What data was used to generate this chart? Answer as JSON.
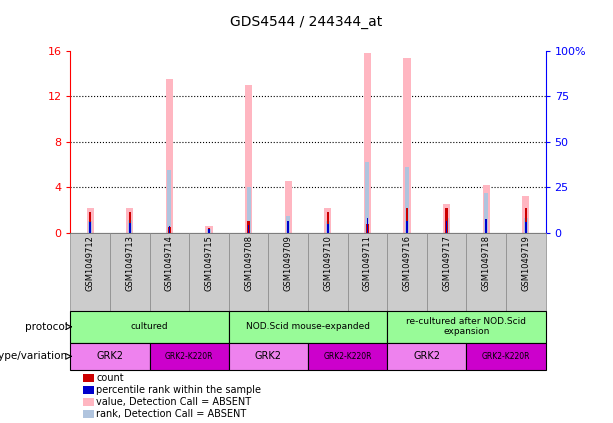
{
  "title": "GDS4544 / 244344_at",
  "samples": [
    "GSM1049712",
    "GSM1049713",
    "GSM1049714",
    "GSM1049715",
    "GSM1049708",
    "GSM1049709",
    "GSM1049710",
    "GSM1049711",
    "GSM1049716",
    "GSM1049717",
    "GSM1049718",
    "GSM1049719"
  ],
  "value_absent": [
    2.2,
    2.2,
    13.5,
    0.6,
    13.0,
    4.5,
    2.2,
    15.8,
    15.4,
    2.5,
    4.2,
    3.2
  ],
  "rank_absent": [
    1.0,
    1.1,
    5.5,
    0.35,
    4.0,
    1.5,
    1.0,
    6.2,
    5.8,
    1.3,
    3.5,
    1.3
  ],
  "count_val": [
    1.8,
    1.8,
    0.5,
    0.45,
    1.0,
    1.0,
    1.8,
    0.8,
    2.2,
    2.2,
    1.2,
    2.2
  ],
  "rank_val": [
    0.9,
    0.85,
    0.55,
    0.35,
    0.65,
    1.0,
    0.8,
    1.3,
    1.05,
    1.0,
    1.2,
    0.9
  ],
  "ylim": [
    0,
    16
  ],
  "y2lim": [
    0,
    100
  ],
  "yticks": [
    0,
    4,
    8,
    12,
    16
  ],
  "y2ticks": [
    0,
    25,
    50,
    75,
    100
  ],
  "color_value_absent": "#FFB6C1",
  "color_rank_absent": "#B0C4DE",
  "color_count": "#CC0000",
  "color_rank": "#0000CC",
  "protocol_color": "#98FB98",
  "genotype_grk2_color": "#EE82EE",
  "genotype_k220r_color": "#CC00CC",
  "sample_box_color": "#CCCCCC",
  "left_label_protocol": "protocol",
  "left_label_genotype": "genotype/variation",
  "background_color": "#ffffff"
}
